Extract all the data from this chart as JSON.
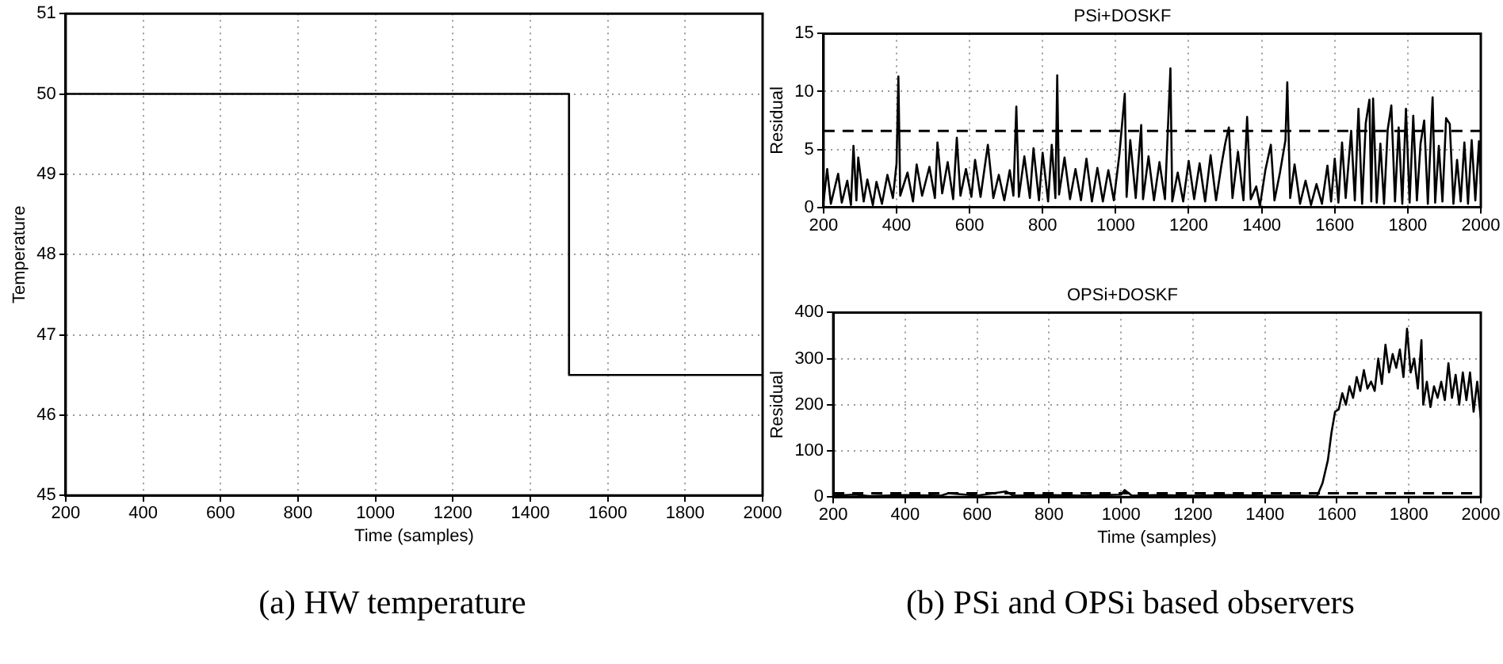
{
  "chart_data": [
    {
      "type": "line",
      "xlabel": "Time (samples)",
      "ylabel": "Temperature",
      "xlim": [
        200,
        2000
      ],
      "xticks": [
        200,
        400,
        600,
        800,
        1000,
        1200,
        1400,
        1600,
        1800,
        2000
      ],
      "ylim": [
        45,
        51
      ],
      "yticks": [
        45,
        46,
        47,
        48,
        49,
        50,
        51
      ],
      "grid": true,
      "legend": false,
      "marker": "none",
      "line_style": "solid",
      "annotations": [
        "(a) HW temperature"
      ],
      "series": [
        {
          "color": "#000000",
          "x": [
            200,
            1500,
            1500,
            2000
          ],
          "values": [
            50,
            50,
            46.5,
            46.5
          ]
        }
      ]
    },
    {
      "type": "line",
      "title": "PSi+DOSKF",
      "ylabel": "Residual",
      "xlim": [
        200,
        2000
      ],
      "xticks": [
        200,
        400,
        600,
        800,
        1000,
        1200,
        1400,
        1600,
        1800,
        2000
      ],
      "ylim": [
        0,
        15
      ],
      "yticks": [
        0,
        5,
        10,
        15
      ],
      "grid": true,
      "legend": false,
      "marker": "none",
      "line_style": "solid",
      "ref_lines": [
        {
          "axis": "y",
          "value": 6.6,
          "color": "#000000",
          "line_style": "dashed"
        }
      ],
      "series": [
        {
          "color": "#000000",
          "x": [
            200,
            210,
            220,
            240,
            250,
            265,
            275,
            282,
            290,
            295,
            310,
            320,
            335,
            345,
            360,
            375,
            390,
            400,
            405,
            410,
            430,
            445,
            455,
            470,
            490,
            505,
            512,
            525,
            540,
            555,
            565,
            575,
            590,
            605,
            615,
            630,
            650,
            665,
            680,
            695,
            710,
            720,
            728,
            735,
            750,
            765,
            775,
            790,
            800,
            815,
            825,
            835,
            840,
            845,
            860,
            875,
            890,
            905,
            920,
            935,
            950,
            965,
            980,
            995,
            1010,
            1025,
            1030,
            1040,
            1055,
            1070,
            1075,
            1090,
            1105,
            1120,
            1135,
            1150,
            1155,
            1170,
            1185,
            1200,
            1215,
            1230,
            1245,
            1260,
            1275,
            1290,
            1300,
            1310,
            1320,
            1335,
            1350,
            1360,
            1370,
            1385,
            1395,
            1410,
            1425,
            1435,
            1450,
            1465,
            1470,
            1478,
            1490,
            1505,
            1520,
            1535,
            1550,
            1565,
            1580,
            1590,
            1600,
            1610,
            1620,
            1630,
            1645,
            1655,
            1665,
            1675,
            1685,
            1695,
            1700,
            1705,
            1715,
            1725,
            1735,
            1745,
            1755,
            1765,
            1775,
            1785,
            1795,
            1805,
            1815,
            1825,
            1835,
            1845,
            1855,
            1868,
            1875,
            1885,
            1895,
            1905,
            1915,
            1925,
            1935,
            1945,
            1955,
            1965,
            1975,
            1985,
            1995,
            2000
          ],
          "values": [
            0.5,
            3.3,
            0.3,
            2.9,
            0.4,
            2.3,
            0.2,
            5.3,
            0.6,
            4.3,
            0.5,
            2.4,
            0.2,
            2.2,
            0.3,
            2.8,
            0.8,
            3.8,
            11.3,
            1.0,
            3.0,
            0.5,
            3.7,
            1.0,
            3.5,
            0.8,
            5.6,
            1.2,
            3.9,
            0.7,
            6.0,
            1.0,
            3.3,
            0.9,
            4.1,
            0.9,
            5.4,
            0.8,
            2.8,
            0.6,
            3.2,
            1.0,
            8.7,
            0.9,
            4.4,
            0.8,
            5.1,
            0.6,
            4.7,
            0.5,
            5.4,
            0.8,
            11.4,
            1.1,
            4.3,
            0.7,
            3.3,
            0.6,
            4.2,
            0.5,
            3.4,
            0.5,
            3.2,
            0.6,
            4.5,
            9.8,
            0.9,
            5.8,
            0.8,
            7.1,
            0.7,
            4.4,
            0.6,
            3.9,
            0.7,
            12.0,
            0.5,
            3.0,
            0.5,
            4.0,
            0.7,
            3.8,
            0.5,
            4.5,
            0.6,
            3.7,
            5.5,
            6.9,
            0.8,
            4.8,
            0.6,
            7.8,
            0.7,
            1.8,
            0.1,
            3.2,
            5.4,
            0.6,
            3.0,
            5.8,
            10.8,
            0.8,
            3.7,
            0.3,
            2.3,
            0.2,
            2.0,
            0.3,
            3.6,
            0.5,
            4.2,
            0.4,
            5.6,
            0.8,
            6.6,
            0.6,
            8.5,
            0.3,
            7.3,
            9.3,
            0.5,
            9.4,
            0.4,
            5.5,
            0.3,
            6.7,
            8.8,
            0.5,
            6.9,
            0.3,
            8.5,
            0.4,
            7.9,
            0.6,
            5.5,
            7.5,
            0.3,
            9.5,
            0.4,
            5.3,
            0.5,
            7.7,
            7.2,
            0.3,
            4.1,
            0.5,
            5.6,
            0.3,
            5.8,
            0.6,
            5.7,
            2.0
          ]
        }
      ]
    },
    {
      "type": "line",
      "title": "OPSi+DOSKF",
      "xlabel": "Time (samples)",
      "ylabel": "Residual",
      "xlim": [
        200,
        2000
      ],
      "xticks": [
        200,
        400,
        600,
        800,
        1000,
        1200,
        1400,
        1600,
        1800,
        2000
      ],
      "ylim": [
        0,
        400
      ],
      "yticks": [
        0,
        100,
        200,
        300,
        400
      ],
      "grid": true,
      "legend": false,
      "marker": "none",
      "line_style": "solid",
      "annotations": [
        "(b) PSi and OPSi based observers"
      ],
      "ref_lines": [
        {
          "axis": "y",
          "value": 8,
          "color": "#000000",
          "line_style": "dashed"
        }
      ],
      "series": [
        {
          "color": "#000000",
          "x": [
            200,
            260,
            300,
            400,
            500,
            520,
            600,
            680,
            700,
            800,
            900,
            1000,
            1010,
            1030,
            1100,
            1200,
            1300,
            1400,
            1500,
            1545,
            1560,
            1575,
            1585,
            1595,
            1605,
            1615,
            1625,
            1635,
            1645,
            1655,
            1665,
            1675,
            1685,
            1695,
            1705,
            1715,
            1725,
            1735,
            1745,
            1755,
            1765,
            1775,
            1785,
            1795,
            1805,
            1815,
            1825,
            1835,
            1840,
            1850,
            1860,
            1870,
            1880,
            1890,
            1900,
            1910,
            1920,
            1930,
            1940,
            1950,
            1960,
            1970,
            1980,
            1990,
            2000
          ],
          "values": [
            3,
            5,
            2,
            4,
            3,
            8,
            3,
            12,
            3,
            4,
            3,
            5,
            15,
            3,
            4,
            3,
            4,
            3,
            3,
            2,
            30,
            80,
            140,
            185,
            190,
            225,
            200,
            240,
            215,
            260,
            230,
            275,
            235,
            250,
            230,
            300,
            245,
            330,
            270,
            310,
            280,
            320,
            260,
            365,
            270,
            300,
            235,
            340,
            200,
            250,
            195,
            240,
            215,
            250,
            210,
            290,
            215,
            265,
            200,
            270,
            210,
            270,
            185,
            250,
            170
          ]
        }
      ]
    }
  ]
}
